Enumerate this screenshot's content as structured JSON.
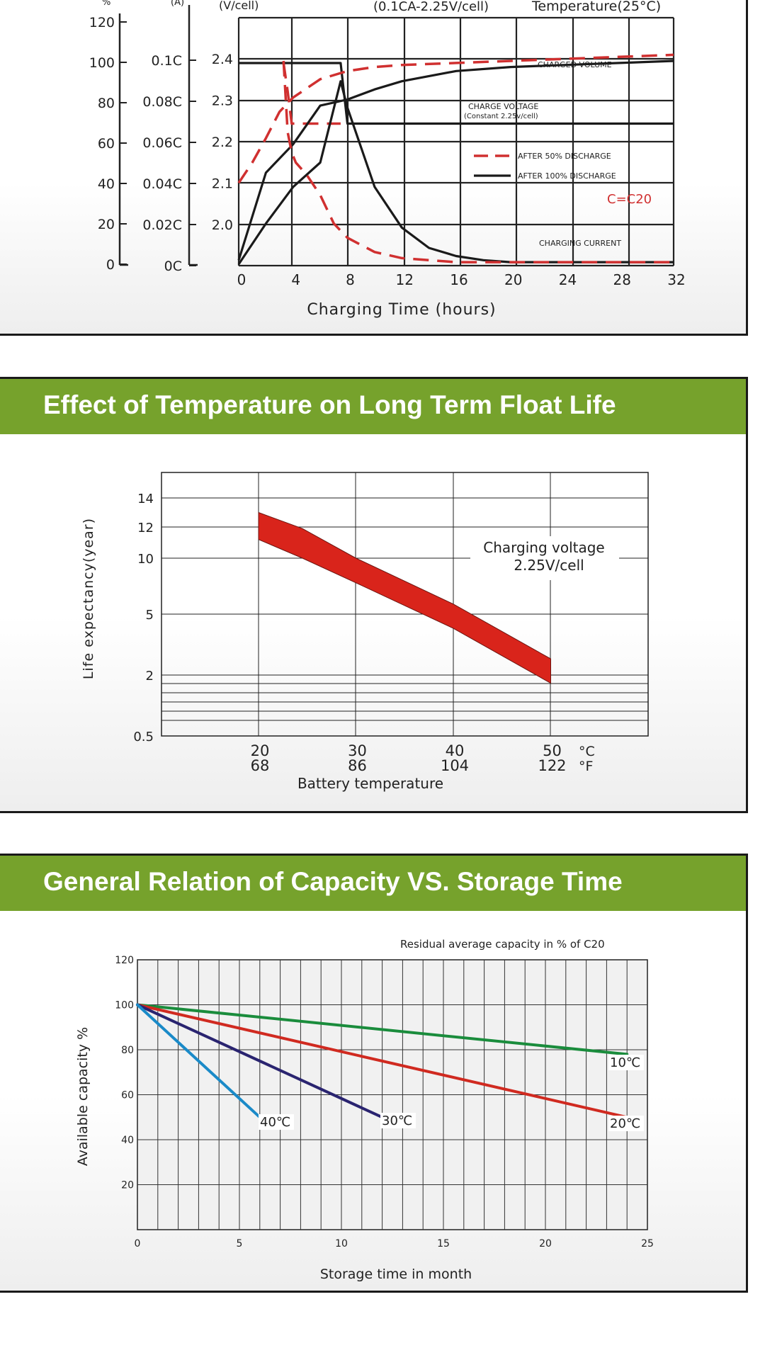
{
  "chart_data": [
    {
      "type": "line",
      "title": "",
      "header_left_units": [
        "%",
        "(A)",
        "(V/cell)"
      ],
      "subtitle": "(0.1CA-2.25V/cell)",
      "condition": "Temperature(25°C)",
      "xlabel": "Charging Time (hours)",
      "x_ticks": [
        "0",
        "4",
        "8",
        "12",
        "16",
        "20",
        "24",
        "28",
        "32"
      ],
      "xlim": [
        0,
        32
      ],
      "y_axes": {
        "percent": {
          "ticks": [
            "120",
            "100",
            "80",
            "60",
            "40",
            "20",
            "0"
          ]
        },
        "current": {
          "ticks": [
            "0.1C",
            "0.08C",
            "0.06C",
            "0.04C",
            "0.02C",
            "0C"
          ]
        },
        "voltage": {
          "ticks": [
            "2.4",
            "2.3",
            "2.2",
            "2.1",
            "2.0"
          ]
        }
      },
      "annotations": {
        "charged_volume": "CHARGED VOLUME",
        "charge_voltage_1": "CHARGE VOLTAGE",
        "charge_voltage_2": "(Constant 2.25v/cell)",
        "charging_current": "CHARGING CURRENT",
        "c_note": "C=C20"
      },
      "legend": [
        {
          "label": "AFTER 50% DISCHARGE",
          "style": "dashed",
          "color": "#d03030"
        },
        {
          "label": "AFTER 100% DISCHARGE",
          "style": "solid",
          "color": "#1a1a1a"
        }
      ],
      "series": [
        {
          "curve": "charge voltage",
          "style": "solid",
          "x": [
            0,
            7.5,
            8,
            32
          ],
          "y_volt": [
            2.4,
            2.4,
            2.25,
            2.25
          ]
        },
        {
          "curve": "charge voltage",
          "style": "dashed",
          "x": [
            3.3,
            3.6,
            3.9,
            4.5,
            7.5
          ],
          "y_volt": [
            2.4,
            2.33,
            2.25,
            2.25,
            2.25
          ]
        },
        {
          "curve": "charged volume",
          "style": "solid",
          "x": [
            0,
            2,
            4,
            6,
            8,
            10,
            12,
            16,
            20,
            24,
            28,
            32
          ],
          "y_pct": [
            2,
            45,
            59,
            78,
            81,
            86,
            90,
            95,
            97,
            98,
            99,
            100
          ]
        },
        {
          "curve": "charged volume",
          "style": "dashed",
          "x": [
            0,
            1,
            2,
            3,
            4,
            6,
            8,
            10,
            12,
            16,
            20,
            24,
            28,
            32
          ],
          "y_pct": [
            40,
            50,
            62,
            75,
            82,
            91,
            95,
            97,
            98,
            99,
            100,
            101,
            102,
            103
          ]
        },
        {
          "curve": "charging current",
          "style": "solid",
          "x": [
            0,
            2,
            4,
            6,
            7.5,
            8,
            10,
            12,
            14,
            16,
            18,
            20,
            24,
            28,
            32
          ],
          "y_pct": [
            0,
            20,
            38,
            50,
            90,
            77,
            38,
            18,
            8,
            4,
            2,
            1,
            1,
            1,
            1
          ]
        },
        {
          "curve": "charging current",
          "style": "dashed",
          "x": [
            3.3,
            3.6,
            3.9,
            4.2,
            5,
            6,
            7,
            8,
            10,
            12,
            14,
            16,
            20,
            24,
            28,
            32
          ],
          "y_pct": [
            100,
            65,
            55,
            50,
            44,
            34,
            20,
            13,
            6,
            3,
            2,
            1,
            1,
            1,
            1,
            1
          ]
        }
      ]
    },
    {
      "type": "area",
      "title": "Effect of Temperature on Long Term Float Life",
      "xlabel": "Battery temperature",
      "ylabel": "Life expectancy(year)",
      "x_ticks_c": [
        "20",
        "30",
        "40",
        "50"
      ],
      "x_ticks_f": [
        "68",
        "86",
        "104",
        "122"
      ],
      "unit_c": "°C",
      "unit_f": "°F",
      "y_ticks": [
        "14",
        "12",
        "10",
        "5",
        "2",
        "0.5"
      ],
      "note_line1": "Charging voltage",
      "note_line2": "2.25V/cell",
      "band": {
        "x_c": [
          20,
          24.5,
          30,
          40,
          50
        ],
        "upper_years": [
          13.0,
          11.9,
          10.0,
          5.9,
          2.8
        ],
        "lower_years": [
          11.2,
          10.0,
          7.8,
          4.3,
          1.8
        ]
      },
      "band_color": "#d9241b"
    },
    {
      "type": "line",
      "title": "General Relation of Capacity VS. Storage Time",
      "subtitle": "Residual average capacity in  % of C20",
      "xlabel": "Storage time in  month",
      "ylabel": "Available capacity %",
      "x_ticks": [
        "0",
        "5",
        "10",
        "15",
        "20",
        "25"
      ],
      "y_ticks": [
        "120",
        "100",
        "80",
        "60",
        "40",
        "20"
      ],
      "xlim": [
        0,
        25
      ],
      "ylim": [
        0,
        120
      ],
      "series": [
        {
          "name": "10℃",
          "x": [
            0,
            24
          ],
          "y": [
            100,
            78
          ],
          "color": "#1a8c3c"
        },
        {
          "name": "20℃",
          "x": [
            0,
            24
          ],
          "y": [
            100,
            50
          ],
          "color": "#d02a20"
        },
        {
          "name": "30℃",
          "x": [
            0,
            12
          ],
          "y": [
            100,
            50
          ],
          "color": "#2a2470"
        },
        {
          "name": "40℃",
          "x": [
            0,
            6
          ],
          "y": [
            100,
            50
          ],
          "color": "#1a8ac8"
        }
      ]
    }
  ]
}
